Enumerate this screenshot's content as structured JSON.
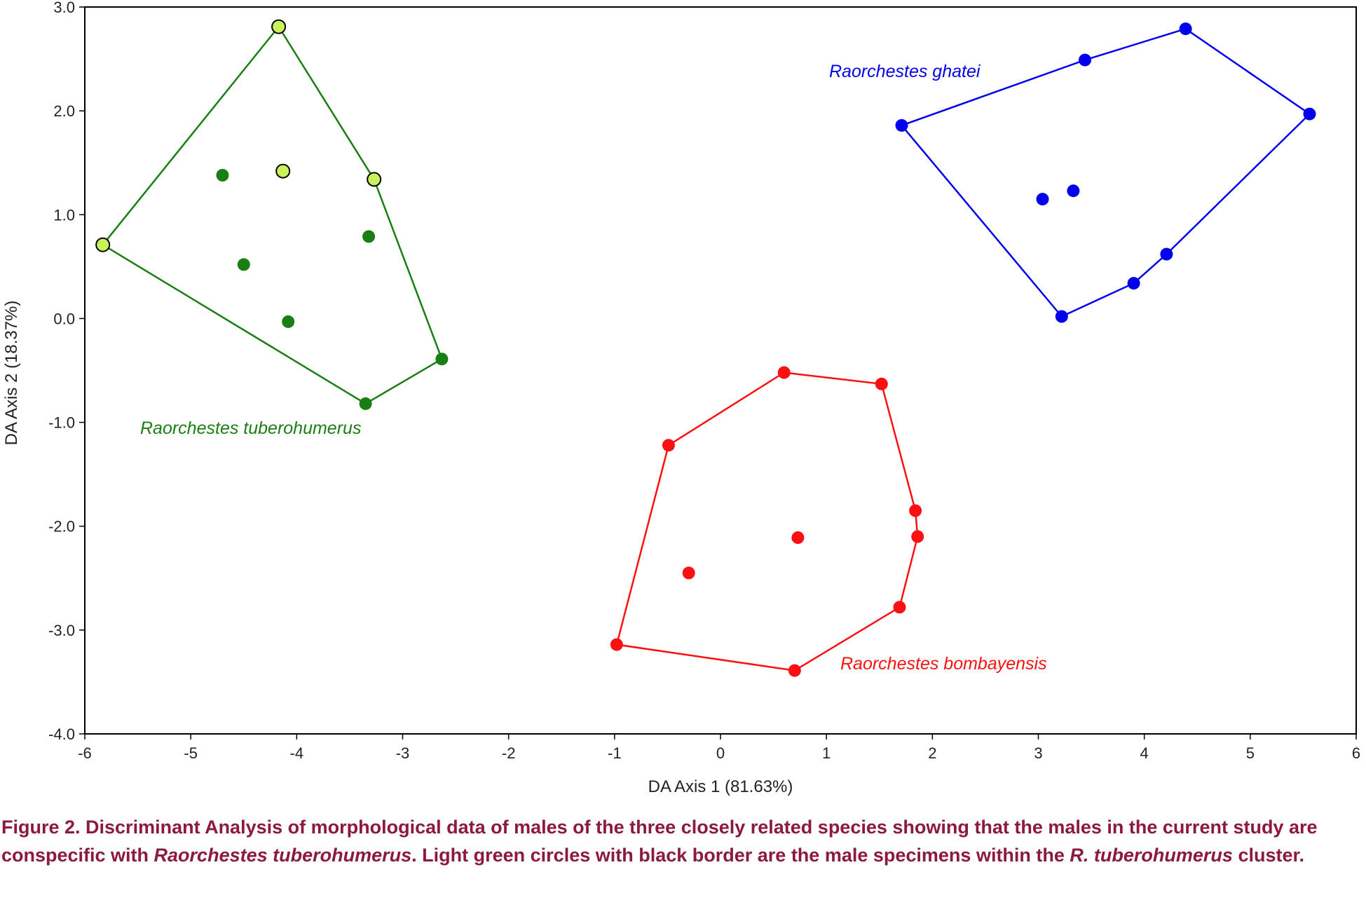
{
  "chart_data": {
    "type": "scatter",
    "xlabel": "DA Axis 1 (81.63%)",
    "ylabel": "DA Axis 2 (18.37%)",
    "xlim": [
      -6,
      6
    ],
    "ylim": [
      -4,
      3
    ],
    "x_ticks": [
      "-6",
      "-5",
      "-4",
      "-3",
      "-2",
      "-1",
      "0",
      "1",
      "2",
      "3",
      "4",
      "5",
      "6"
    ],
    "y_ticks": [
      "3.0",
      "2.0",
      "1.0",
      "0.0",
      "-1.0",
      "-2.0",
      "-3.0",
      "-4.0"
    ],
    "series": [
      {
        "name": "Raorchestes tuberohumerus",
        "label": "Raorchestes tuberohumerus",
        "color": "#1a7f12",
        "points": [
          [
            -4.7,
            1.38
          ],
          [
            -4.5,
            0.52
          ],
          [
            -4.08,
            -0.03
          ],
          [
            -3.32,
            0.79
          ],
          [
            -3.35,
            -0.82
          ],
          [
            -2.63,
            -0.39
          ]
        ],
        "hull": [
          [
            -5.83,
            0.71
          ],
          [
            -4.17,
            2.81
          ],
          [
            -3.27,
            1.34
          ],
          [
            -2.63,
            -0.39
          ],
          [
            -3.35,
            -0.82
          ]
        ]
      },
      {
        "name": "Males in current study",
        "color": "#c8f25a",
        "stroke": "#000000",
        "points": [
          [
            -5.83,
            0.71
          ],
          [
            -4.17,
            2.81
          ],
          [
            -4.13,
            1.42
          ],
          [
            -3.27,
            1.34
          ]
        ]
      },
      {
        "name": "Raorchestes ghatei",
        "label": "Raorchestes ghatei",
        "color": "#0000ee",
        "points": [
          [
            1.71,
            1.86
          ],
          [
            3.44,
            2.49
          ],
          [
            4.39,
            2.79
          ],
          [
            5.56,
            1.97
          ],
          [
            4.21,
            0.62
          ],
          [
            3.9,
            0.34
          ],
          [
            3.22,
            0.02
          ],
          [
            3.04,
            1.15
          ],
          [
            3.33,
            1.23
          ]
        ],
        "hull": [
          [
            1.71,
            1.86
          ],
          [
            3.44,
            2.49
          ],
          [
            4.39,
            2.79
          ],
          [
            5.56,
            1.97
          ],
          [
            4.21,
            0.62
          ],
          [
            3.9,
            0.34
          ],
          [
            3.22,
            0.02
          ]
        ]
      },
      {
        "name": "Raorchestes bombayensis",
        "label": "Raorchestes bombayensis",
        "color": "#ff1010",
        "points": [
          [
            0.6,
            -0.52
          ],
          [
            1.52,
            -0.63
          ],
          [
            -0.49,
            -1.22
          ],
          [
            1.84,
            -1.85
          ],
          [
            1.86,
            -2.1
          ],
          [
            0.73,
            -2.11
          ],
          [
            -0.3,
            -2.45
          ],
          [
            1.69,
            -2.78
          ],
          [
            -0.98,
            -3.14
          ],
          [
            0.7,
            -3.39
          ]
        ],
        "hull": [
          [
            0.6,
            -0.52
          ],
          [
            1.52,
            -0.63
          ],
          [
            1.84,
            -1.85
          ],
          [
            1.86,
            -2.1
          ],
          [
            1.69,
            -2.78
          ],
          [
            0.7,
            -3.39
          ],
          [
            -0.98,
            -3.14
          ],
          [
            -0.49,
            -1.22
          ]
        ]
      }
    ]
  },
  "caption": {
    "part1": "Figure 2. Discriminant Analysis of morphological data of males of the three closely related species showing that the males in the current study are conspecific with ",
    "species_italic": "Raorchestes tuberohumerus",
    "part2": ". Light green circles with black border are the male specimens within the ",
    "species_short_italic": "R. tuberohumerus",
    "part3": " cluster."
  }
}
